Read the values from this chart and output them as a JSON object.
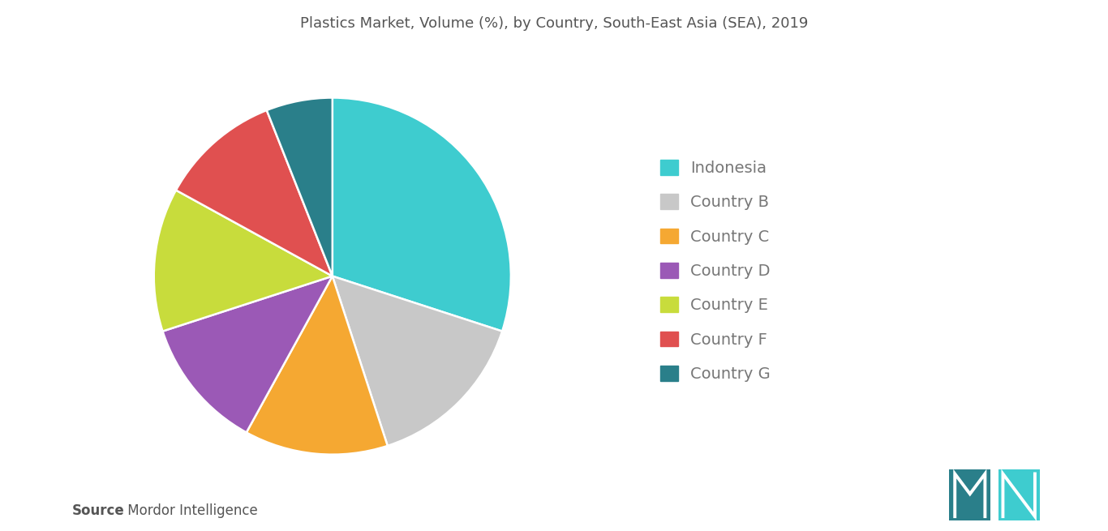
{
  "title": "Plastics Market, Volume (%), by Country, South-East Asia (SEA), 2019",
  "labels": [
    "Indonesia",
    "Country B",
    "Country C",
    "Country D",
    "Country E",
    "Country F",
    "Country G"
  ],
  "values": [
    30,
    15,
    13,
    12,
    13,
    11,
    6
  ],
  "colors": [
    "#3ecccf",
    "#c8c8c8",
    "#f5a832",
    "#9b59b6",
    "#c8dc3c",
    "#e05050",
    "#2a7f8a"
  ],
  "source_bold": "Source",
  "source_regular": " : Mordor Intelligence",
  "background_color": "#ffffff",
  "title_fontsize": 13,
  "legend_fontsize": 14,
  "source_fontsize": 12,
  "start_angle": 90,
  "legend_label_color": "#777777",
  "title_color": "#555555",
  "logo_color_dark": "#2a7f8a",
  "logo_color_light": "#3ecccf"
}
